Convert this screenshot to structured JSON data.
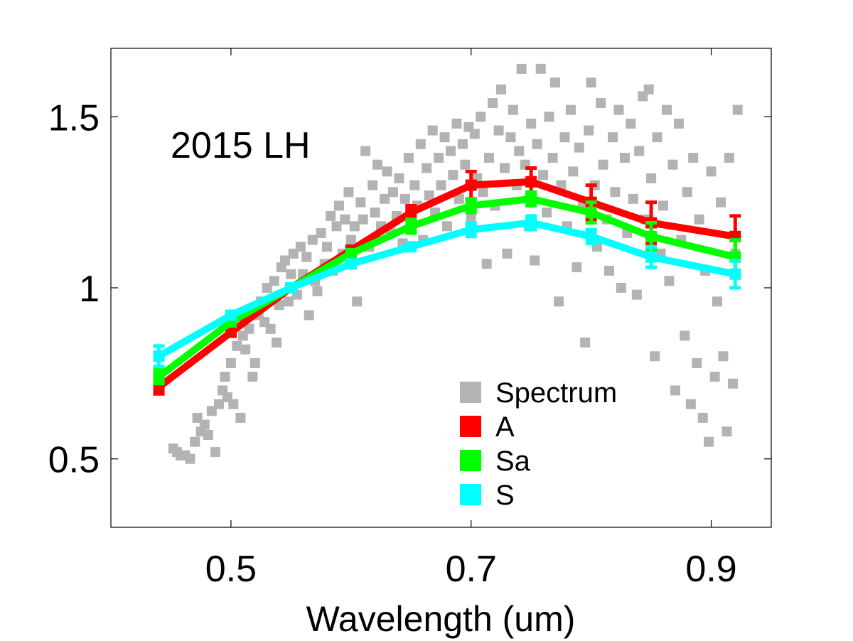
{
  "chart_data": {
    "type": "line",
    "title": "",
    "annotation": "2015 LH",
    "xlabel": "Wavelength (um)",
    "ylabel": "",
    "xlim": [
      0.4,
      0.95
    ],
    "ylim": [
      0.3,
      1.7
    ],
    "xticks": [
      0.5,
      0.7,
      0.9
    ],
    "xtick_labels": [
      "0.5",
      "0.7",
      "0.9"
    ],
    "yticks": [
      0.5,
      1.0,
      1.5
    ],
    "ytick_labels": [
      "0.5",
      "1",
      "1.5"
    ],
    "grid": false,
    "legend": {
      "location": "bottom-right",
      "entries": [
        "Spectrum",
        "A",
        "Sa",
        "S"
      ]
    },
    "colors": {
      "Spectrum": "#b3b3b3",
      "A": "#ff0000",
      "Sa": "#00ff00",
      "S": "#00ffff"
    },
    "x": [
      0.44,
      0.5,
      0.55,
      0.6,
      0.65,
      0.7,
      0.75,
      0.8,
      0.85,
      0.92
    ],
    "series": [
      {
        "name": "A",
        "color": "#ff0000",
        "values": [
          0.71,
          0.87,
          1.0,
          1.11,
          1.22,
          1.3,
          1.31,
          1.25,
          1.19,
          1.15
        ],
        "errors": [
          0.02,
          0.01,
          0.0,
          0.01,
          0.02,
          0.04,
          0.04,
          0.05,
          0.06,
          0.06
        ]
      },
      {
        "name": "Sa",
        "color": "#00ff00",
        "values": [
          0.74,
          0.9,
          1.0,
          1.1,
          1.18,
          1.24,
          1.26,
          1.22,
          1.15,
          1.09
        ],
        "errors": [
          0.02,
          0.01,
          0.0,
          0.01,
          0.02,
          0.02,
          0.02,
          0.03,
          0.04,
          0.05
        ]
      },
      {
        "name": "S",
        "color": "#00ffff",
        "values": [
          0.8,
          0.92,
          1.0,
          1.07,
          1.12,
          1.17,
          1.19,
          1.15,
          1.09,
          1.04
        ],
        "errors": [
          0.03,
          0.01,
          0.0,
          0.01,
          0.01,
          0.02,
          0.02,
          0.02,
          0.03,
          0.04
        ]
      }
    ],
    "spectrum": {
      "name": "Spectrum",
      "color": "#b3b3b3",
      "points": [
        [
          0.452,
          0.53
        ],
        [
          0.455,
          0.52
        ],
        [
          0.458,
          0.51
        ],
        [
          0.462,
          0.51
        ],
        [
          0.466,
          0.5
        ],
        [
          0.47,
          0.55
        ],
        [
          0.472,
          0.62
        ],
        [
          0.475,
          0.58
        ],
        [
          0.478,
          0.6
        ],
        [
          0.481,
          0.57
        ],
        [
          0.484,
          0.64
        ],
        [
          0.487,
          0.52
        ],
        [
          0.49,
          0.66
        ],
        [
          0.493,
          0.7
        ],
        [
          0.495,
          0.74
        ],
        [
          0.497,
          0.68
        ],
        [
          0.5,
          0.78
        ],
        [
          0.502,
          0.66
        ],
        [
          0.505,
          0.83
        ],
        [
          0.508,
          0.62
        ],
        [
          0.51,
          0.86
        ],
        [
          0.512,
          0.82
        ],
        [
          0.515,
          0.88
        ],
        [
          0.518,
          0.74
        ],
        [
          0.52,
          0.78
        ],
        [
          0.523,
          0.92
        ],
        [
          0.525,
          0.96
        ],
        [
          0.528,
          0.9
        ],
        [
          0.53,
          1.0
        ],
        [
          0.533,
          0.88
        ],
        [
          0.536,
          1.02
        ],
        [
          0.538,
          0.84
        ],
        [
          0.54,
          0.95
        ],
        [
          0.542,
          1.06
        ],
        [
          0.545,
          1.08
        ],
        [
          0.548,
          0.96
        ],
        [
          0.55,
          1.04
        ],
        [
          0.552,
          1.1
        ],
        [
          0.555,
          0.98
        ],
        [
          0.558,
          1.12
        ],
        [
          0.56,
          1.04
        ],
        [
          0.563,
          1.09
        ],
        [
          0.565,
          0.92
        ],
        [
          0.568,
          1.14
        ],
        [
          0.57,
          1.02
        ],
        [
          0.572,
          0.99
        ],
        [
          0.575,
          1.16
        ],
        [
          0.578,
          1.07
        ],
        [
          0.58,
          1.12
        ],
        [
          0.583,
          1.21
        ],
        [
          0.585,
          1.05
        ],
        [
          0.588,
          1.18
        ],
        [
          0.59,
          1.24
        ],
        [
          0.593,
          1.1
        ],
        [
          0.595,
          1.2
        ],
        [
          0.598,
          1.28
        ],
        [
          0.6,
          1.14
        ],
        [
          0.603,
          1.18
        ],
        [
          0.605,
          0.96
        ],
        [
          0.608,
          1.25
        ],
        [
          0.61,
          1.2
        ],
        [
          0.612,
          1.4
        ],
        [
          0.615,
          1.12
        ],
        [
          0.618,
          1.3
        ],
        [
          0.62,
          1.22
        ],
        [
          0.622,
          1.36
        ],
        [
          0.625,
          1.18
        ],
        [
          0.628,
          1.26
        ],
        [
          0.63,
          1.34
        ],
        [
          0.633,
          1.16
        ],
        [
          0.635,
          1.28
        ],
        [
          0.638,
          1.21
        ],
        [
          0.64,
          1.32
        ],
        [
          0.643,
          1.13
        ],
        [
          0.645,
          1.26
        ],
        [
          0.648,
          1.38
        ],
        [
          0.65,
          1.2
        ],
        [
          0.653,
          1.3
        ],
        [
          0.655,
          1.24
        ],
        [
          0.658,
          1.42
        ],
        [
          0.66,
          1.14
        ],
        [
          0.663,
          1.35
        ],
        [
          0.665,
          1.27
        ],
        [
          0.668,
          1.46
        ],
        [
          0.67,
          1.22
        ],
        [
          0.673,
          1.38
        ],
        [
          0.675,
          1.3
        ],
        [
          0.678,
          1.44
        ],
        [
          0.68,
          1.18
        ],
        [
          0.683,
          1.4
        ],
        [
          0.685,
          1.33
        ],
        [
          0.688,
          1.48
        ],
        [
          0.69,
          1.26
        ],
        [
          0.693,
          1.42
        ],
        [
          0.695,
          1.36
        ],
        [
          0.698,
          1.47
        ],
        [
          0.7,
          1.21
        ],
        [
          0.703,
          1.45
        ],
        [
          0.705,
          1.32
        ],
        [
          0.708,
          1.5
        ],
        [
          0.71,
          1.28
        ],
        [
          0.713,
          1.07
        ],
        [
          0.715,
          1.38
        ],
        [
          0.718,
          1.54
        ],
        [
          0.72,
          1.24
        ],
        [
          0.723,
          1.46
        ],
        [
          0.725,
          1.58
        ],
        [
          0.728,
          1.35
        ],
        [
          0.73,
          1.1
        ],
        [
          0.733,
          1.44
        ],
        [
          0.735,
          1.52
        ],
        [
          0.738,
          1.3
        ],
        [
          0.74,
          1.4
        ],
        [
          0.742,
          1.64
        ],
        [
          0.745,
          1.36
        ],
        [
          0.748,
          1.18
        ],
        [
          0.75,
          1.48
        ],
        [
          0.753,
          1.08
        ],
        [
          0.755,
          1.42
        ],
        [
          0.758,
          1.64
        ],
        [
          0.76,
          1.33
        ],
        [
          0.763,
          1.22
        ],
        [
          0.765,
          1.5
        ],
        [
          0.768,
          1.38
        ],
        [
          0.77,
          1.6
        ],
        [
          0.773,
          0.96
        ],
        [
          0.775,
          1.3
        ],
        [
          0.778,
          1.44
        ],
        [
          0.78,
          1.18
        ],
        [
          0.783,
          1.52
        ],
        [
          0.785,
          1.34
        ],
        [
          0.788,
          1.06
        ],
        [
          0.79,
          1.41
        ],
        [
          0.793,
          1.24
        ],
        [
          0.795,
          0.84
        ],
        [
          0.798,
          1.46
        ],
        [
          0.8,
          1.6
        ],
        [
          0.803,
          1.3
        ],
        [
          0.805,
          1.12
        ],
        [
          0.808,
          1.54
        ],
        [
          0.81,
          1.36
        ],
        [
          0.813,
          1.2
        ],
        [
          0.815,
          1.05
        ],
        [
          0.818,
          1.44
        ],
        [
          0.82,
          1.28
        ],
        [
          0.823,
          1.52
        ],
        [
          0.825,
          1.0
        ],
        [
          0.828,
          1.38
        ],
        [
          0.83,
          1.16
        ],
        [
          0.833,
          1.48
        ],
        [
          0.835,
          1.26
        ],
        [
          0.838,
          0.98
        ],
        [
          0.84,
          1.4
        ],
        [
          0.843,
          1.56
        ],
        [
          0.845,
          1.2
        ],
        [
          0.848,
          1.58
        ],
        [
          0.85,
          1.32
        ],
        [
          0.853,
          0.8
        ],
        [
          0.855,
          1.44
        ],
        [
          0.858,
          1.1
        ],
        [
          0.86,
          1.24
        ],
        [
          0.863,
          1.52
        ],
        [
          0.865,
          1.02
        ],
        [
          0.868,
          1.36
        ],
        [
          0.87,
          0.7
        ],
        [
          0.873,
          1.48
        ],
        [
          0.875,
          1.14
        ],
        [
          0.878,
          0.86
        ],
        [
          0.88,
          1.28
        ],
        [
          0.883,
          0.66
        ],
        [
          0.885,
          1.38
        ],
        [
          0.888,
          0.78
        ],
        [
          0.89,
          1.2
        ],
        [
          0.893,
          0.62
        ],
        [
          0.895,
          1.05
        ],
        [
          0.898,
          0.55
        ],
        [
          0.9,
          1.34
        ],
        [
          0.903,
          0.74
        ],
        [
          0.905,
          0.96
        ],
        [
          0.908,
          1.25
        ],
        [
          0.91,
          0.8
        ],
        [
          0.913,
          0.58
        ],
        [
          0.915,
          1.38
        ],
        [
          0.918,
          0.72
        ],
        [
          0.92,
          1.1
        ],
        [
          0.922,
          1.52
        ]
      ]
    }
  }
}
